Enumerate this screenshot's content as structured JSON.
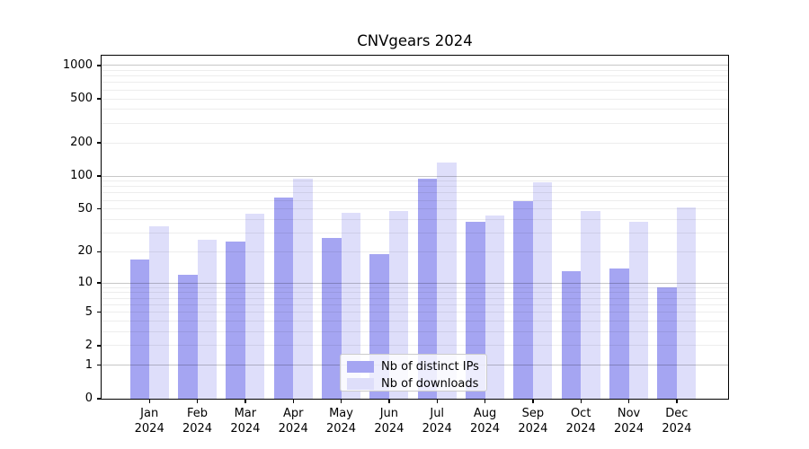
{
  "chart_data": {
    "type": "bar",
    "title": "CNVgears 2024",
    "categories": [
      "Jan 2024",
      "Feb 2024",
      "Mar 2024",
      "Apr 2024",
      "May 2024",
      "Jun 2024",
      "Jul 2024",
      "Aug 2024",
      "Sep 2024",
      "Oct 2024",
      "Nov 2024",
      "Dec 2024"
    ],
    "months": [
      "Jan",
      "Feb",
      "Mar",
      "Apr",
      "May",
      "Jun",
      "Jul",
      "Aug",
      "Sep",
      "Oct",
      "Nov",
      "Dec"
    ],
    "year": "2024",
    "series": [
      {
        "name": "Nb of distinct IPs",
        "color": "#a5a5f2",
        "values": [
          17,
          12,
          25,
          64,
          27,
          19,
          94,
          38,
          59,
          13,
          14,
          9
        ]
      },
      {
        "name": "Nb of downloads",
        "color": "#dedefa",
        "values": [
          35,
          26,
          45,
          94,
          46,
          48,
          134,
          44,
          88,
          48,
          38,
          52
        ]
      }
    ],
    "yscale": "log1p",
    "ylim": [
      0,
      1000
    ],
    "yticks": [
      0,
      1,
      2,
      5,
      10,
      20,
      50,
      100,
      200,
      500,
      1000
    ],
    "grid": {
      "orientation": "horizontal",
      "major_lines": [
        1,
        10,
        100,
        1000
      ],
      "major_color": "#c2c2c2",
      "minor_color": "#ededed",
      "drawn_over_bars": true
    },
    "legend": {
      "position": "lower-center-inside",
      "background": "#ffffff",
      "border_color": "#cccccc"
    },
    "axis_color": "#000000",
    "background_color": "#ffffff"
  }
}
